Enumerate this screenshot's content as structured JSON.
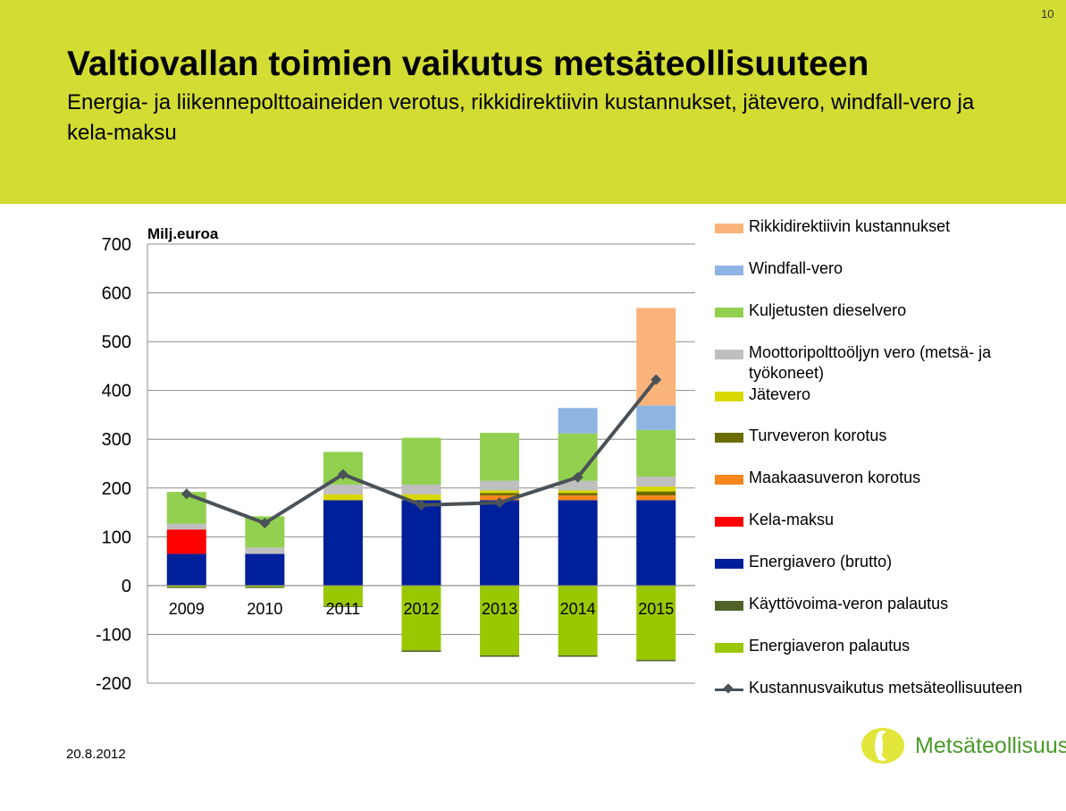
{
  "page_number": "10",
  "title": "Valtiovallan toimien vaikutus metsäteollisuuteen",
  "subtitle": "Energia- ja liikennepolttoaineiden verotus, rikkidirektiivin kustannukset, jätevero, windfall-vero ja kela-maksu",
  "date": "20.8.2012",
  "logo_text": "Metsäteollisuus",
  "chart_data": {
    "type": "bar",
    "stacked": true,
    "ylabel": "Milj.euroa",
    "ylim": [
      -200,
      700
    ],
    "yticks": [
      700,
      600,
      500,
      400,
      300,
      200,
      100,
      0,
      -100,
      -200
    ],
    "grid": true,
    "legend_position": "right",
    "categories": [
      "2009",
      "2010",
      "2011",
      "2012",
      "2013",
      "2014",
      "2015"
    ],
    "series": [
      {
        "name": "Rikkidirektiivin kustannukset",
        "color": "#fab37a",
        "values": [
          0,
          0,
          0,
          0,
          0,
          0,
          200
        ]
      },
      {
        "name": "Windfall-vero",
        "color": "#8eb4e3",
        "values": [
          0,
          0,
          0,
          0,
          0,
          52,
          50
        ]
      },
      {
        "name": "Kuljetusten dieselvero",
        "color": "#92d050",
        "values": [
          65,
          64,
          67,
          96,
          98,
          97,
          96
        ]
      },
      {
        "name": "Moottoripolttoöljyn vero (metsä- ja työkoneet)",
        "color": "#bfbfbf",
        "values": [
          12,
          13,
          20,
          20,
          20,
          20,
          20
        ]
      },
      {
        "name": "Jätevero",
        "color": "#d8d800",
        "values": [
          0,
          0,
          12,
          12,
          5,
          5,
          10
        ]
      },
      {
        "name": "Turveveron korotus",
        "color": "#6b6b00",
        "values": [
          0,
          0,
          0,
          0,
          5,
          5,
          8
        ]
      },
      {
        "name": "Maakaasuveron korotus",
        "color": "#f7861e",
        "values": [
          0,
          0,
          0,
          0,
          10,
          10,
          10
        ]
      },
      {
        "name": "Kela-maksu",
        "color": "#ff0000",
        "values": [
          50,
          0,
          0,
          0,
          0,
          0,
          0
        ]
      },
      {
        "name": "Energiavero (brutto)",
        "color": "#001f9a",
        "values": [
          65,
          65,
          175,
          175,
          175,
          175,
          175
        ]
      },
      {
        "name": "Käyttövoima-veron palautus",
        "color": "#4f6228",
        "values": [
          -2,
          -2,
          -2,
          -3,
          -3,
          -3,
          -3
        ]
      },
      {
        "name": "Energiaveron palautus",
        "color": "#9ac800",
        "values": [
          -3,
          -3,
          -42,
          -133,
          -143,
          -143,
          -152
        ]
      }
    ],
    "line": {
      "name": "Kustannusvaikutus metsäteollisuuteen",
      "color": "#4a5258",
      "values": [
        188,
        128,
        228,
        165,
        170,
        222,
        422
      ]
    }
  }
}
